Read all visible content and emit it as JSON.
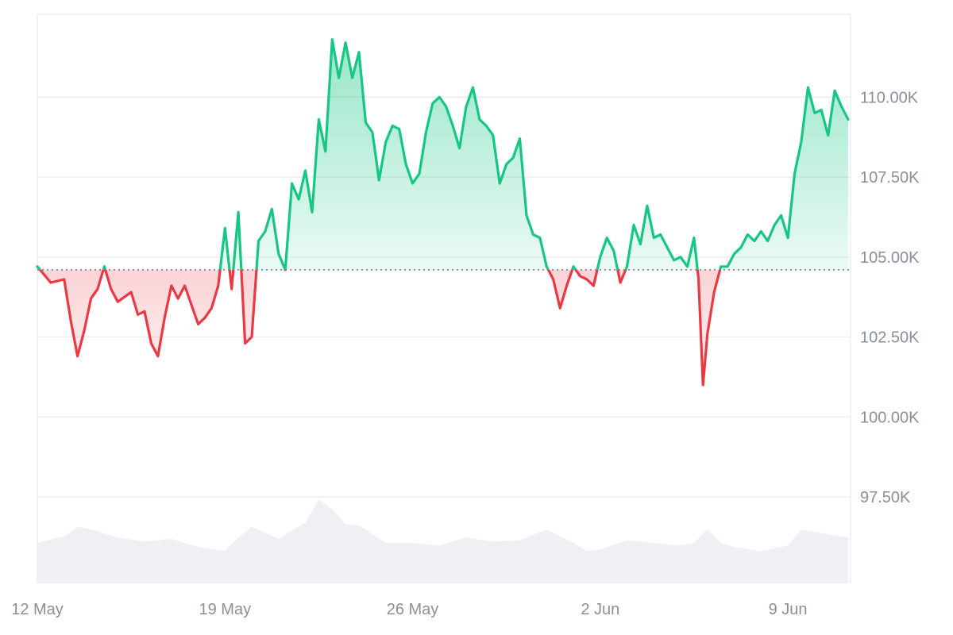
{
  "chart_data": {
    "type": "area",
    "title": "",
    "xlabel": "",
    "ylabel": "",
    "x_start": "2025-05-12",
    "x_end": "2025-06-11",
    "xlim": [
      "2025-05-12",
      "2025-06-11"
    ],
    "ylim": [
      95000,
      112500
    ],
    "baseline": 104600,
    "grid": true,
    "legend": "none",
    "x_ticks": [
      {
        "date": "2025-05-12",
        "label": "12 May"
      },
      {
        "date": "2025-05-19",
        "label": "19 May"
      },
      {
        "date": "2025-05-26",
        "label": "26 May"
      },
      {
        "date": "2025-06-02",
        "label": "2 Jun"
      },
      {
        "date": "2025-06-09",
        "label": "9 Jun"
      }
    ],
    "y_ticks": [
      {
        "value": 97500,
        "label": "97.50K"
      },
      {
        "value": 100000,
        "label": "100.00K"
      },
      {
        "value": 102500,
        "label": "102.50K"
      },
      {
        "value": 105000,
        "label": "105.00K"
      },
      {
        "value": 107500,
        "label": "107.50K"
      },
      {
        "value": 110000,
        "label": "110.00K"
      }
    ],
    "series": [
      {
        "name": "",
        "points": [
          [
            "2025-05-12T00:00",
            104700
          ],
          [
            "2025-05-12T12:00",
            104200
          ],
          [
            "2025-05-13T00:00",
            104300
          ],
          [
            "2025-05-13T06:00",
            103000
          ],
          [
            "2025-05-13T12:00",
            101900
          ],
          [
            "2025-05-13T18:00",
            102700
          ],
          [
            "2025-05-14T00:00",
            103700
          ],
          [
            "2025-05-14T06:00",
            104000
          ],
          [
            "2025-05-14T12:00",
            104700
          ],
          [
            "2025-05-14T18:00",
            104000
          ],
          [
            "2025-05-15T00:00",
            103600
          ],
          [
            "2025-05-15T12:00",
            103900
          ],
          [
            "2025-05-15T18:00",
            103200
          ],
          [
            "2025-05-16T00:00",
            103300
          ],
          [
            "2025-05-16T06:00",
            102300
          ],
          [
            "2025-05-16T12:00",
            101900
          ],
          [
            "2025-05-16T18:00",
            103100
          ],
          [
            "2025-05-17T00:00",
            104100
          ],
          [
            "2025-05-17T06:00",
            103700
          ],
          [
            "2025-05-17T12:00",
            104100
          ],
          [
            "2025-05-17T18:00",
            103500
          ],
          [
            "2025-05-18T00:00",
            102900
          ],
          [
            "2025-05-18T06:00",
            103100
          ],
          [
            "2025-05-18T12:00",
            103400
          ],
          [
            "2025-05-18T18:00",
            104100
          ],
          [
            "2025-05-19T00:00",
            105900
          ],
          [
            "2025-05-19T06:00",
            104000
          ],
          [
            "2025-05-19T12:00",
            106400
          ],
          [
            "2025-05-19T18:00",
            102300
          ],
          [
            "2025-05-20T00:00",
            102500
          ],
          [
            "2025-05-20T06:00",
            105500
          ],
          [
            "2025-05-20T12:00",
            105800
          ],
          [
            "2025-05-20T18:00",
            106500
          ],
          [
            "2025-05-21T00:00",
            105100
          ],
          [
            "2025-05-21T06:00",
            104600
          ],
          [
            "2025-05-21T12:00",
            107300
          ],
          [
            "2025-05-21T18:00",
            106800
          ],
          [
            "2025-05-22T00:00",
            107700
          ],
          [
            "2025-05-22T06:00",
            106400
          ],
          [
            "2025-05-22T12:00",
            109300
          ],
          [
            "2025-05-22T18:00",
            108300
          ],
          [
            "2025-05-23T00:00",
            111800
          ],
          [
            "2025-05-23T06:00",
            110600
          ],
          [
            "2025-05-23T12:00",
            111700
          ],
          [
            "2025-05-23T18:00",
            110600
          ],
          [
            "2025-05-24T00:00",
            111400
          ],
          [
            "2025-05-24T06:00",
            109200
          ],
          [
            "2025-05-24T12:00",
            108900
          ],
          [
            "2025-05-24T18:00",
            107400
          ],
          [
            "2025-05-25T00:00",
            108600
          ],
          [
            "2025-05-25T06:00",
            109100
          ],
          [
            "2025-05-25T12:00",
            109000
          ],
          [
            "2025-05-25T18:00",
            107900
          ],
          [
            "2025-05-26T00:00",
            107300
          ],
          [
            "2025-05-26T06:00",
            107600
          ],
          [
            "2025-05-26T12:00",
            108900
          ],
          [
            "2025-05-26T18:00",
            109800
          ],
          [
            "2025-05-27T00:00",
            110000
          ],
          [
            "2025-05-27T06:00",
            109700
          ],
          [
            "2025-05-27T12:00",
            109100
          ],
          [
            "2025-05-27T18:00",
            108400
          ],
          [
            "2025-05-28T00:00",
            109700
          ],
          [
            "2025-05-28T06:00",
            110300
          ],
          [
            "2025-05-28T12:00",
            109300
          ],
          [
            "2025-05-28T18:00",
            109100
          ],
          [
            "2025-05-29T00:00",
            108800
          ],
          [
            "2025-05-29T06:00",
            107300
          ],
          [
            "2025-05-29T12:00",
            107900
          ],
          [
            "2025-05-29T18:00",
            108100
          ],
          [
            "2025-05-30T00:00",
            108700
          ],
          [
            "2025-05-30T06:00",
            106300
          ],
          [
            "2025-05-30T12:00",
            105700
          ],
          [
            "2025-05-30T18:00",
            105600
          ],
          [
            "2025-05-31T00:00",
            104700
          ],
          [
            "2025-05-31T06:00",
            104300
          ],
          [
            "2025-05-31T12:00",
            103400
          ],
          [
            "2025-05-31T18:00",
            104100
          ],
          [
            "2025-06-01T00:00",
            104700
          ],
          [
            "2025-06-01T06:00",
            104400
          ],
          [
            "2025-06-01T12:00",
            104300
          ],
          [
            "2025-06-01T18:00",
            104100
          ],
          [
            "2025-06-02T00:00",
            105000
          ],
          [
            "2025-06-02T06:00",
            105600
          ],
          [
            "2025-06-02T12:00",
            105200
          ],
          [
            "2025-06-02T18:00",
            104200
          ],
          [
            "2025-06-03T00:00",
            104700
          ],
          [
            "2025-06-03T06:00",
            106000
          ],
          [
            "2025-06-03T12:00",
            105400
          ],
          [
            "2025-06-03T18:00",
            106600
          ],
          [
            "2025-06-04T00:00",
            105600
          ],
          [
            "2025-06-04T06:00",
            105700
          ],
          [
            "2025-06-04T12:00",
            105300
          ],
          [
            "2025-06-04T18:00",
            104900
          ],
          [
            "2025-06-05T00:00",
            105000
          ],
          [
            "2025-06-05T06:00",
            104700
          ],
          [
            "2025-06-05T12:00",
            105600
          ],
          [
            "2025-06-05T16:00",
            104300
          ],
          [
            "2025-06-05T20:00",
            101000
          ],
          [
            "2025-06-06T00:00",
            102600
          ],
          [
            "2025-06-06T06:00",
            103900
          ],
          [
            "2025-06-06T12:00",
            104700
          ],
          [
            "2025-06-06T18:00",
            104700
          ],
          [
            "2025-06-07T00:00",
            105100
          ],
          [
            "2025-06-07T06:00",
            105300
          ],
          [
            "2025-06-07T12:00",
            105700
          ],
          [
            "2025-06-07T18:00",
            105500
          ],
          [
            "2025-06-08T00:00",
            105800
          ],
          [
            "2025-06-08T06:00",
            105500
          ],
          [
            "2025-06-08T12:00",
            106000
          ],
          [
            "2025-06-08T18:00",
            106300
          ],
          [
            "2025-06-09T00:00",
            105600
          ],
          [
            "2025-06-09T06:00",
            107600
          ],
          [
            "2025-06-09T12:00",
            108600
          ],
          [
            "2025-06-09T18:00",
            110300
          ],
          [
            "2025-06-10T00:00",
            109500
          ],
          [
            "2025-06-10T06:00",
            109600
          ],
          [
            "2025-06-10T12:00",
            108800
          ],
          [
            "2025-06-10T18:00",
            110200
          ],
          [
            "2025-06-11T00:00",
            109700
          ],
          [
            "2025-06-11T06:00",
            109300
          ]
        ]
      }
    ],
    "volume": {
      "points": [
        [
          "2025-05-12T00:00",
          0.3
        ],
        [
          "2025-05-13T00:00",
          0.35
        ],
        [
          "2025-05-13T12:00",
          0.42
        ],
        [
          "2025-05-14T00:00",
          0.4
        ],
        [
          "2025-05-15T00:00",
          0.34
        ],
        [
          "2025-05-16T00:00",
          0.31
        ],
        [
          "2025-05-17T00:00",
          0.33
        ],
        [
          "2025-05-18T00:00",
          0.27
        ],
        [
          "2025-05-19T00:00",
          0.24
        ],
        [
          "2025-05-19T12:00",
          0.34
        ],
        [
          "2025-05-20T00:00",
          0.42
        ],
        [
          "2025-05-21T00:00",
          0.33
        ],
        [
          "2025-05-22T00:00",
          0.45
        ],
        [
          "2025-05-22T12:00",
          0.62
        ],
        [
          "2025-05-23T00:00",
          0.55
        ],
        [
          "2025-05-23T12:00",
          0.44
        ],
        [
          "2025-05-24T00:00",
          0.43
        ],
        [
          "2025-05-25T00:00",
          0.3
        ],
        [
          "2025-05-26T00:00",
          0.3
        ],
        [
          "2025-05-27T00:00",
          0.28
        ],
        [
          "2025-05-28T00:00",
          0.34
        ],
        [
          "2025-05-29T00:00",
          0.31
        ],
        [
          "2025-05-30T00:00",
          0.32
        ],
        [
          "2025-05-31T00:00",
          0.4
        ],
        [
          "2025-06-01T00:00",
          0.3
        ],
        [
          "2025-06-01T12:00",
          0.24
        ],
        [
          "2025-06-02T00:00",
          0.25
        ],
        [
          "2025-06-03T00:00",
          0.32
        ],
        [
          "2025-06-04T00:00",
          0.3
        ],
        [
          "2025-06-05T00:00",
          0.28
        ],
        [
          "2025-06-05T12:00",
          0.3
        ],
        [
          "2025-06-06T00:00",
          0.4
        ],
        [
          "2025-06-06T12:00",
          0.3
        ],
        [
          "2025-06-07T00:00",
          0.27
        ],
        [
          "2025-06-08T00:00",
          0.24
        ],
        [
          "2025-06-09T00:00",
          0.28
        ],
        [
          "2025-06-09T12:00",
          0.4
        ],
        [
          "2025-06-10T00:00",
          0.38
        ],
        [
          "2025-06-11T06:00",
          0.34
        ]
      ]
    },
    "colors": {
      "up_line": "#16c784",
      "down_line": "#ea3943",
      "up_fill": "#16c784",
      "down_fill": "#ea3943",
      "volume": "#eef0f4",
      "grid": "#eceef1",
      "baseline": "#707784",
      "tick_text": "#8a8f98"
    }
  }
}
